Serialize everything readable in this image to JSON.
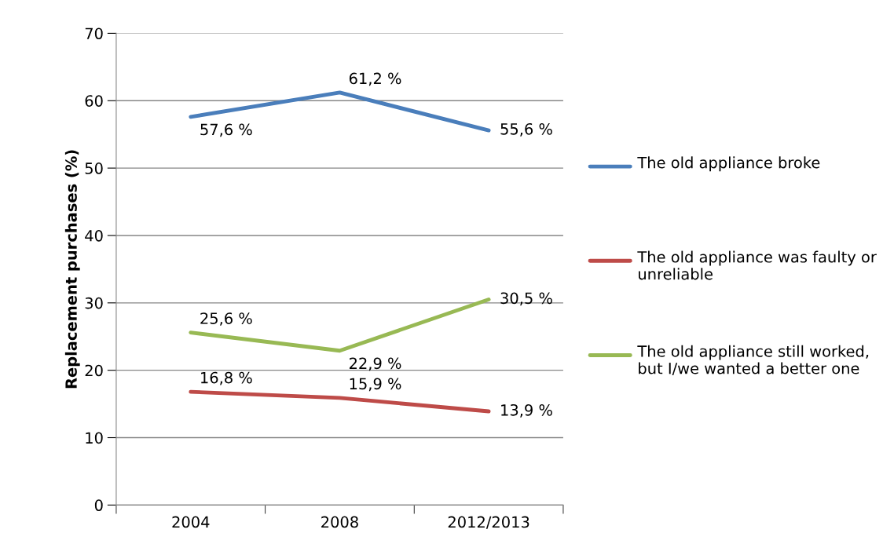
{
  "chart_data": {
    "type": "line",
    "ylabel": "Replacement purchases (%)",
    "categories": [
      "2004",
      "2008",
      "2012/2013"
    ],
    "series": [
      {
        "name": "The old appliance broke",
        "color": "#4a7ebb",
        "values": [
          57.6,
          61.2,
          55.6
        ],
        "value_labels": [
          "57,6 %",
          "61,2 %",
          "55,6 %"
        ]
      },
      {
        "name": "The old appliance was faulty or unreliable",
        "color": "#be4b48",
        "values": [
          16.8,
          15.9,
          13.9
        ],
        "value_labels": [
          "16,8 %",
          "15,9 %",
          "13,9 %"
        ]
      },
      {
        "name": "The old appliance still worked, but I/we wanted a better one",
        "color": "#98b954",
        "values": [
          25.6,
          22.9,
          30.5
        ],
        "value_labels": [
          "25,6 %",
          "22,9 %",
          "30,5 %"
        ]
      }
    ],
    "ylim": [
      0,
      70
    ],
    "yticks": [
      0,
      10,
      20,
      30,
      40,
      50,
      60,
      70
    ],
    "grid": "y",
    "legend": "right",
    "marker": "none",
    "line_style": "solid"
  }
}
